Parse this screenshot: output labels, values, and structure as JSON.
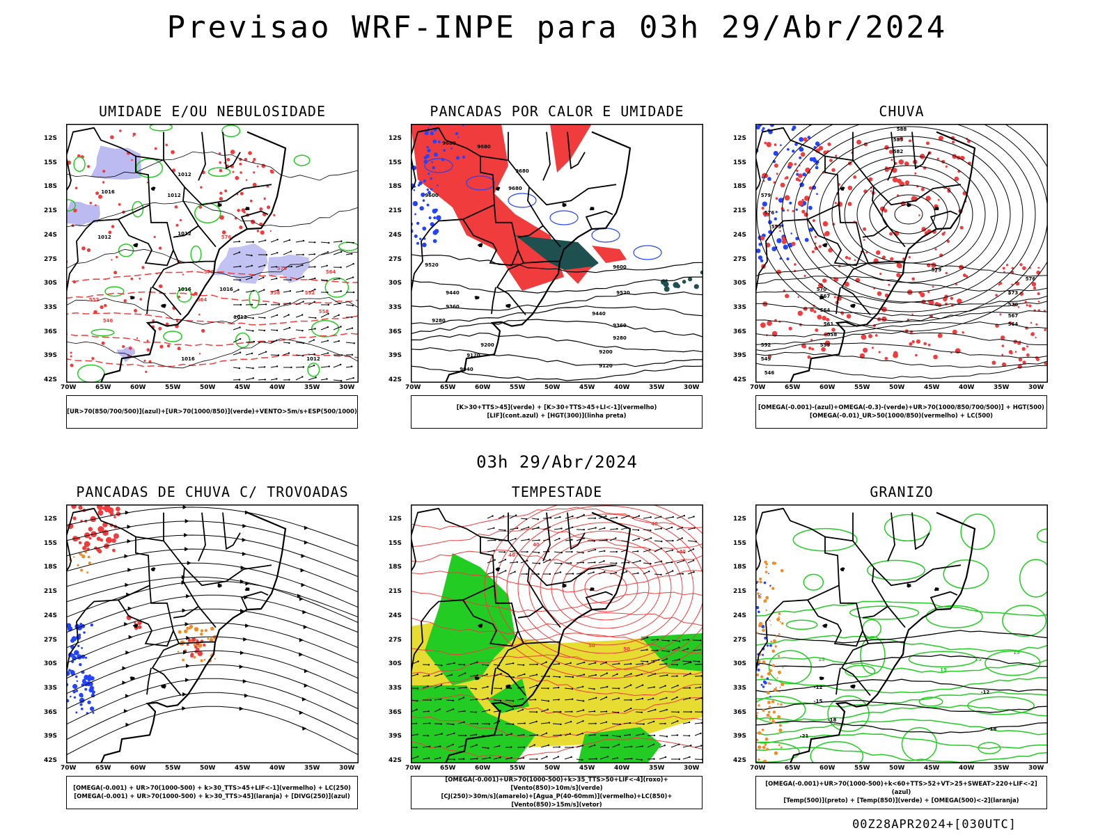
{
  "title": "Previsao WRF-INPE  para 03h 29/Abr/2024",
  "subtitle": "03h 29/Abr/2024",
  "footer": "00Z28APR2024+[030UTC]",
  "lat_labels": [
    "12S",
    "15S",
    "18S",
    "21S",
    "24S",
    "27S",
    "30S",
    "33S",
    "36S",
    "39S",
    "42S"
  ],
  "lon_labels": [
    "70W",
    "65W",
    "60W",
    "55W",
    "50W",
    "45W",
    "40W",
    "35W",
    "30W"
  ],
  "colors": {
    "red": "#f03c3c",
    "green": "#22cc22",
    "blue": "#2244ff",
    "lavender": "#b4b4f0",
    "orange": "#f08c28",
    "yellow": "#e6dc32",
    "darkteal": "#1e5050",
    "black": "#000000"
  },
  "panels": [
    {
      "id": "umidade",
      "title": "UMIDADE E/OU NEBULOSIDADE",
      "legend": [
        "[UR>70(850/700/500)](azul)+[UR>70(1000/850)](verde)+VENTO>5m/s+ESP(500/1000)"
      ],
      "contour_labels": [
        "1012",
        "1012",
        "1016",
        "1012",
        "1012",
        "1016",
        "1016",
        "1012",
        "1016",
        "1012",
        "576",
        "576",
        "570",
        "564",
        "558",
        "552",
        "546",
        "552",
        "564",
        "558"
      ]
    },
    {
      "id": "pancadas_calor",
      "title": "PANCADAS POR CALOR E UMIDADE",
      "legend": [
        "[K>30+TTS>45](verde) + [K>30+TTS>45+LI<-1](vermelho)",
        "[LIF](cont.azul) + [HGT(300)](linha preta)"
      ],
      "contour_labels": [
        "9680",
        "9680",
        "9680",
        "9600",
        "9520",
        "9440",
        "9360",
        "9280",
        "9200",
        "9120",
        "9040",
        "9600",
        "9520",
        "9440",
        "9360",
        "9280",
        "9200",
        "9120",
        "9680"
      ]
    },
    {
      "id": "chuva",
      "title": "CHUVA",
      "legend": [
        "[OMEGA(-0.001)-(azul)+OMEGA(-0.3)-(verde)+UR>70(1000/850/700/500)] + HGT(500)",
        "[OMEGA(-0.01)_UR>50(1000/850)(vermelho) + LC(500)"
      ],
      "contour_labels": [
        "588",
        "585",
        "582",
        "579",
        "576",
        "573",
        "570",
        "567",
        "564",
        "561",
        "558",
        "555",
        "552",
        "549",
        "546",
        "579",
        "576",
        "573",
        "570",
        "567",
        "564"
      ]
    },
    {
      "id": "trovoadas",
      "title": "PANCADAS DE CHUVA C/ TROVOADAS",
      "legend": [
        "[OMEGA(-0.001) + UR>70(1000-500) + k>30_TTS>45+LIF<-1](vermelho) + LC(250)",
        "[OMEGA(-0.001) + UR>70(1000-500) + k>30_TTS>45](laranja) + [DIVG(250)](azul)"
      ],
      "contour_labels": []
    },
    {
      "id": "tempestade",
      "title": "TEMPESTADE",
      "legend": [
        "[OMEGA(-0.001)+UR>70(1000-500)+k>35_TTS>50+LIF<-4](roxo)+[Vento(850)>10m/s](verde)",
        "[CJ(250)>30m/s](amarelo)+[Agua_P(40-60mm)](vermelho)+LC(850)+[Vento(850)>15m/s](vetor)"
      ],
      "contour_labels": [
        "40",
        "40",
        "40",
        "50",
        "50",
        "40"
      ]
    },
    {
      "id": "granizo",
      "title": "GRANIZO",
      "legend": [
        "[OMEGA(-0.001)+UR>70(1000-500)+k<60+TTS>52+VT>25+SWEAT>220+LIF<-2](azul)",
        "[Temp(500)](preto) + [Temp(850)](verde) + [OMEGA(500)<-2](laranja)"
      ],
      "contour_labels": [
        "-12",
        "-15",
        "-18",
        "-21",
        "-18",
        "-12",
        "15",
        "15",
        "15",
        "15"
      ]
    }
  ]
}
